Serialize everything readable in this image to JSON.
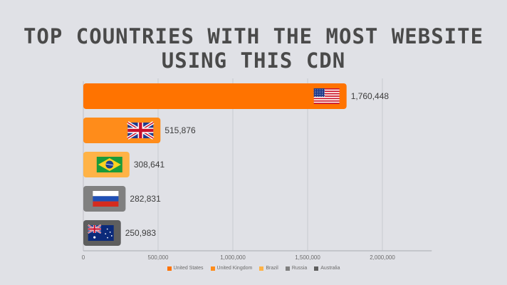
{
  "chart_data": {
    "type": "bar",
    "orientation": "horizontal",
    "title": "TOP COUNTRIES WITH THE MOST WEBSITE USING THIS CDN",
    "categories": [
      "United States",
      "United Kingdom",
      "Brazil",
      "Russia",
      "Australia"
    ],
    "values": [
      1760448,
      515876,
      308641,
      282831,
      250983
    ],
    "value_labels": [
      "1,760,448",
      "515,876",
      "308,641",
      "282,831",
      "250,983"
    ],
    "x_ticks": [
      0,
      500000,
      1000000,
      1500000,
      2000000
    ],
    "x_tick_labels": [
      "0",
      "500,000",
      "1,000,000",
      "1,500,000",
      "2,000,000"
    ],
    "xlim": [
      0,
      2330000
    ],
    "grid": true,
    "legend_position": "bottom",
    "colors": [
      "#ff7300",
      "#ff8c1a",
      "#ffb347",
      "#808080",
      "#5e5e5e"
    ],
    "flags": [
      "us-flag-icon",
      "uk-flag-icon",
      "brazil-flag-icon",
      "russia-flag-icon",
      "australia-flag-icon"
    ]
  }
}
